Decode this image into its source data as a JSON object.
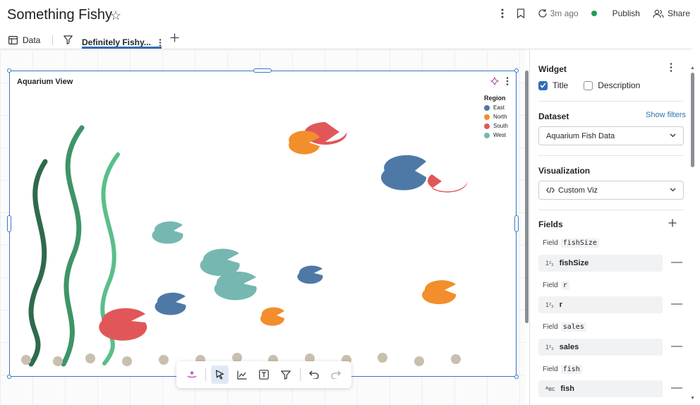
{
  "header": {
    "title": "Something Fishy",
    "updated_ago": "3m ago",
    "publish_label": "Publish",
    "share_label": "Share"
  },
  "tabs": {
    "data_label": "Data",
    "active_label": "Definitely Fishy..."
  },
  "widget": {
    "title": "Aquarium View",
    "legend": {
      "title": "Region",
      "items": [
        {
          "label": "East",
          "color": "#4e79a7"
        },
        {
          "label": "North",
          "color": "#f28e2b"
        },
        {
          "label": "South",
          "color": "#e15759"
        },
        {
          "label": "West",
          "color": "#76b7b2"
        }
      ]
    }
  },
  "panel": {
    "widget_heading": "Widget",
    "title_checkbox": {
      "label": "Title",
      "checked": true
    },
    "description_checkbox": {
      "label": "Description",
      "checked": false
    },
    "dataset_heading": "Dataset",
    "show_filters": "Show filters",
    "dataset_value": "Aquarium Fish Data",
    "visualization_heading": "Visualization",
    "visualization_value": "Custom Viz",
    "fields_heading": "Fields",
    "field_prefix": "Field",
    "fields": [
      {
        "name": "fishSize",
        "type": "number"
      },
      {
        "name": "r",
        "type": "number"
      },
      {
        "name": "sales",
        "type": "number"
      },
      {
        "name": "fish",
        "type": "string"
      }
    ]
  },
  "colors": {
    "accent": "#2f6fb5",
    "selection": "#3a77c2",
    "seaweed_dark": "#2e6b4a",
    "seaweed_mid": "#3e9467",
    "seaweed_light": "#59bf8a",
    "pebble": "#c9bfae"
  },
  "icons": {
    "star": "star-outline-icon",
    "more": "kebab-icon",
    "bookmark": "bookmark-icon",
    "refresh": "refresh-icon",
    "status": "status-dot-icon",
    "share": "people-icon",
    "table": "table-icon",
    "filter": "filter-icon",
    "add": "plus-icon",
    "assistant": "sparkle-icon",
    "select": "pointer-icon",
    "chart": "line-chart-icon",
    "text": "text-box-icon",
    "undo": "undo-icon",
    "redo": "redo-icon",
    "number_type": "number-type-icon",
    "string_type": "string-type-icon"
  }
}
